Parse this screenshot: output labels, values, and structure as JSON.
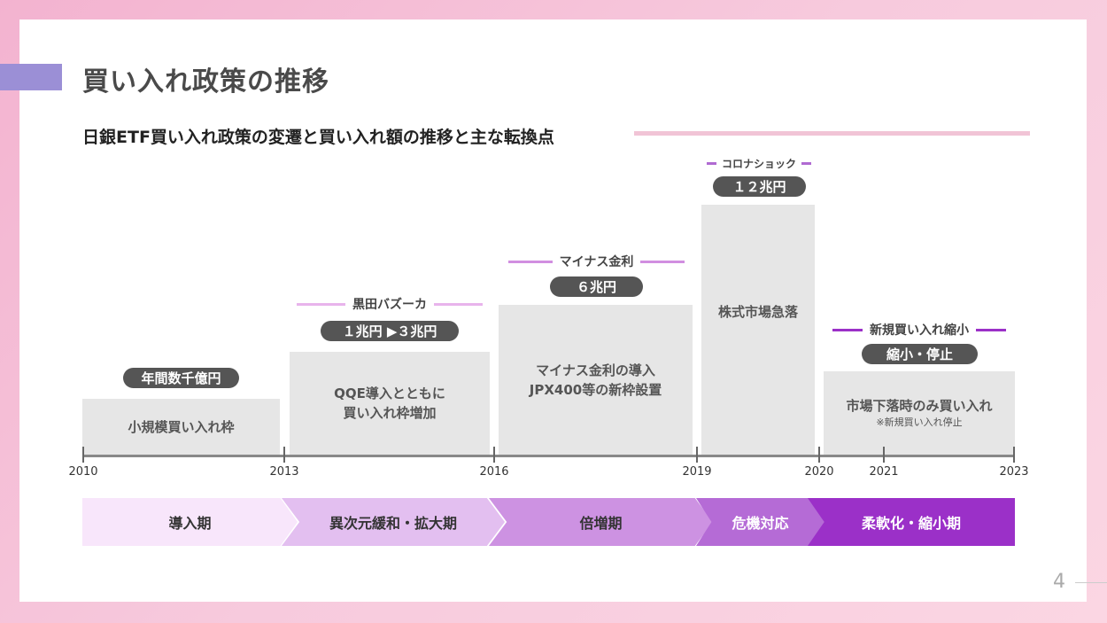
{
  "title": "買い入れ政策の推移",
  "subtitle": "日銀ETF買い入れ政策の変遷と買い入れ額の推移と主な転換点",
  "boxes": [
    {
      "id": "b1",
      "text": "小規模買い入れ枠"
    },
    {
      "id": "b2",
      "line1": "QQE導入とともに",
      "line2": "買い入れ枠増加"
    },
    {
      "id": "b3",
      "line1": "マイナス金利の導入",
      "line2": "JPX400等の新枠設置"
    },
    {
      "id": "b4",
      "text": "株式市場急落"
    },
    {
      "id": "b5",
      "line1": "市場下落時のみ買い入れ",
      "note": "※新規買い入れ停止"
    }
  ],
  "amounts": {
    "a1": "年間数千億円",
    "a2": "１兆円 ▶３兆円",
    "a3": "６兆円",
    "a4": "１２兆円",
    "a5": "縮小・停止"
  },
  "events": {
    "e2": "黒田バズーカ",
    "e3": "マイナス金利",
    "e4": "コロナショック",
    "e5": "新規買い入れ縮小"
  },
  "years": [
    "2010",
    "2013",
    "2016",
    "2019",
    "2020",
    "2021",
    "2023"
  ],
  "phases": [
    {
      "label": "導入期",
      "bg": "#f8e6fb",
      "fg": "#333"
    },
    {
      "label": "異次元緩和・拡大期",
      "bg": "#e3bff0",
      "fg": "#333"
    },
    {
      "label": "倍増期",
      "bg": "#cd92e2",
      "fg": "#333"
    },
    {
      "label": "危機対応",
      "bg": "#b56bd6",
      "fg": "#ffffff"
    },
    {
      "label": "柔軟化・縮小期",
      "bg": "#9b30c8",
      "fg": "#ffffff"
    }
  ],
  "colors": {
    "e2_line": "#e8b4ec",
    "e3_line": "#d18ee0",
    "e4_line": "#b06ad2",
    "e5_line": "#9b30c8"
  },
  "page_number": "4"
}
